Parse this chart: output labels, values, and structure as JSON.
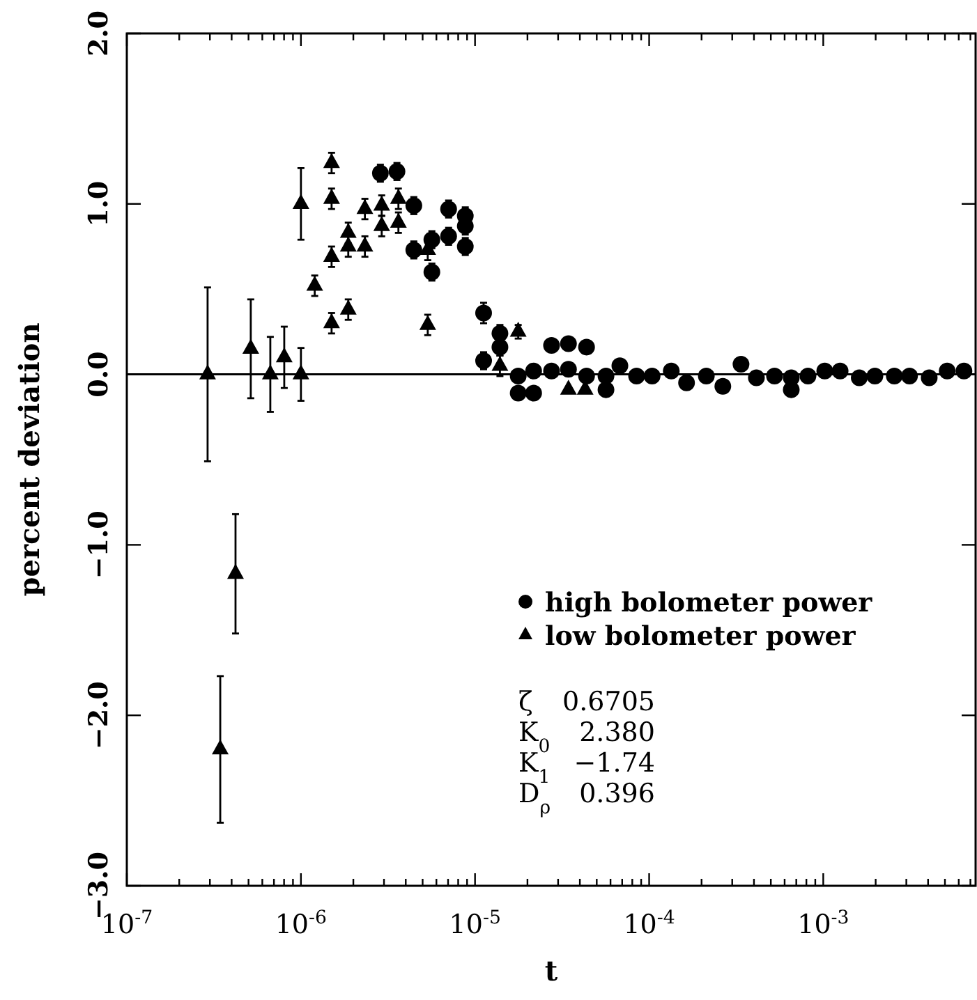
{
  "chart_data": {
    "type": "scatter",
    "xlabel": "t",
    "ylabel": "percent deviation",
    "log": "x",
    "xlim": [
      1e-07,
      0.0075
    ],
    "ylim": [
      -3,
      2
    ],
    "xticks": [
      {
        "value": 1e-07,
        "label": "10$^{-7}$"
      },
      {
        "value": 2e-07,
        "label": null
      },
      {
        "value": 3e-07,
        "label": null
      },
      {
        "value": 4e-07,
        "label": null
      },
      {
        "value": 5e-07,
        "label": null
      },
      {
        "value": 6e-07,
        "label": null
      },
      {
        "value": 7e-07,
        "label": null
      },
      {
        "value": 8e-07,
        "label": null
      },
      {
        "value": 9e-07,
        "label": null
      },
      {
        "value": 1e-06,
        "label": "10$^{-6}$"
      },
      {
        "value": 2e-06,
        "label": null
      },
      {
        "value": 3e-06,
        "label": null
      },
      {
        "value": 4e-06,
        "label": null
      },
      {
        "value": 5e-06,
        "label": null
      },
      {
        "value": 6e-06,
        "label": null
      },
      {
        "value": 7e-06,
        "label": null
      },
      {
        "value": 8e-06,
        "label": null
      },
      {
        "value": 9e-06,
        "label": null
      },
      {
        "value": 1e-05,
        "label": "10$^{-5}$"
      },
      {
        "value": 2e-05,
        "label": null
      },
      {
        "value": 3e-05,
        "label": null
      },
      {
        "value": 4e-05,
        "label": null
      },
      {
        "value": 5e-05,
        "label": null
      },
      {
        "value": 6e-05,
        "label": null
      },
      {
        "value": 7e-05,
        "label": null
      },
      {
        "value": 8e-05,
        "label": null
      },
      {
        "value": 9e-05,
        "label": null
      },
      {
        "value": 0.0001,
        "label": "10$^{-4}$"
      },
      {
        "value": 0.0002,
        "label": null
      },
      {
        "value": 0.0003,
        "label": null
      },
      {
        "value": 0.0004,
        "label": null
      },
      {
        "value": 0.0005,
        "label": null
      },
      {
        "value": 0.0006,
        "label": null
      },
      {
        "value": 0.0007,
        "label": null
      },
      {
        "value": 0.0008,
        "label": null
      },
      {
        "value": 0.0009,
        "label": null
      },
      {
        "value": 0.001,
        "label": "10$^{-3}$"
      },
      {
        "value": 0.002,
        "label": null
      },
      {
        "value": 0.003,
        "label": null
      },
      {
        "value": 0.004,
        "label": null
      },
      {
        "value": 0.005,
        "label": null
      },
      {
        "value": 0.006,
        "label": null
      },
      {
        "value": 0.007,
        "label": null
      }
    ],
    "yticks": [
      {
        "value": 2,
        "label": "2.0"
      },
      {
        "value": 1,
        "label": "1.0"
      },
      {
        "value": 0,
        "label": "0.0"
      },
      {
        "value": -1,
        "label": "−1.0"
      },
      {
        "value": -2,
        "label": "−2.0"
      },
      {
        "value": -3,
        "label": "−3.0"
      }
    ],
    "grid": false,
    "legend": "bottom right",
    "ref_lines": [
      {
        "axis": "y",
        "value": 0,
        "color": "#000000"
      }
    ],
    "annotations": [
      "ζ 0.6705",
      "K$_{0}$ 2.380",
      "K$_{1}$ −1.74",
      "D$_{ρ}$ 0.396"
    ],
    "series": [
      {
        "name": "high bolometer power",
        "color": "#000000",
        "marker": "circle",
        "x": [
          2.86e-06,
          3.56e-06,
          4.45e-06,
          4.45e-06,
          5.65e-06,
          5.65e-06,
          7.05e-06,
          7.05e-06,
          8.79e-06,
          8.79e-06,
          8.79e-06,
          1.12e-05,
          1.12e-05,
          1.39e-05,
          1.39e-05,
          1.77e-05,
          1.77e-05,
          2.17e-05,
          2.17e-05,
          2.75e-05,
          2.75e-05,
          3.44e-05,
          3.44e-05,
          4.37e-05,
          4.37e-05,
          5.65e-05,
          5.65e-05,
          6.79e-05,
          8.47e-05,
          0.000104,
          0.000134,
          0.000164,
          0.000213,
          0.000265,
          0.000337,
          0.000413,
          0.000525,
          0.000655,
          0.000655,
          0.000817,
          0.00102,
          0.00125,
          0.00161,
          0.00198,
          0.00256,
          0.00313,
          0.00406,
          0.00515,
          0.00643
        ],
        "values": [
          1.18,
          1.19,
          0.99,
          0.73,
          0.79,
          0.6,
          0.97,
          0.81,
          0.93,
          0.87,
          0.75,
          0.36,
          0.08,
          0.24,
          0.16,
          -0.01,
          -0.11,
          0.02,
          -0.11,
          0.17,
          0.02,
          0.18,
          0.03,
          0.16,
          -0.01,
          -0.01,
          -0.09,
          0.05,
          -0.01,
          -0.01,
          0.02,
          -0.05,
          -0.01,
          -0.07,
          0.06,
          -0.02,
          -0.01,
          -0.09,
          -0.02,
          -0.01,
          0.02,
          0.02,
          -0.02,
          -0.01,
          -0.01,
          -0.01,
          -0.02,
          0.02,
          0.02
        ],
        "errors": [
          0.05,
          0.05,
          0.05,
          0.05,
          0.05,
          0.05,
          0.05,
          0.05,
          0.05,
          0.05,
          0.05,
          0.06,
          0.05,
          0.05,
          0.05,
          null,
          null,
          null,
          null,
          null,
          null,
          null,
          null,
          null,
          null,
          null,
          null,
          null,
          null,
          null,
          null,
          null,
          null,
          null,
          null,
          null,
          null,
          null,
          null,
          null,
          null,
          null,
          null,
          null,
          null,
          null,
          null,
          null,
          null
        ]
      },
      {
        "name": "low bolometer power",
        "color": "#000000",
        "marker": "triangle",
        "x": [
          2.91e-07,
          3.44e-07,
          4.21e-07,
          5.15e-07,
          6.67e-07,
          8.02e-07,
          1e-06,
          1e-06,
          1.2e-06,
          1.5e-06,
          1.5e-06,
          1.5e-06,
          1.5e-06,
          1.87e-06,
          1.87e-06,
          1.87e-06,
          2.33e-06,
          2.33e-06,
          2.91e-06,
          2.91e-06,
          3.63e-06,
          3.63e-06,
          5.35e-06,
          5.35e-06,
          1.39e-05,
          1.77e-05,
          3.44e-05,
          4.29e-05
        ],
        "values": [
          0,
          -2.2,
          -1.17,
          0.15,
          0,
          0.1,
          0,
          1,
          0.52,
          1.24,
          1.03,
          0.69,
          0.3,
          0.83,
          0.75,
          0.38,
          0.97,
          0.75,
          0.99,
          0.87,
          1.03,
          0.89,
          0.73,
          0.29,
          0.05,
          0.25,
          -0.09,
          -0.09
        ],
        "errors": [
          0.51,
          0.43,
          0.35,
          0.29,
          0.22,
          0.18,
          0.155,
          0.21,
          0.06,
          0.06,
          0.06,
          0.06,
          0.06,
          0.06,
          0.06,
          0.06,
          0.06,
          0.06,
          0.06,
          0.06,
          0.06,
          0.06,
          0.06,
          0.06,
          0.06,
          0.04,
          null,
          null
        ]
      }
    ]
  }
}
